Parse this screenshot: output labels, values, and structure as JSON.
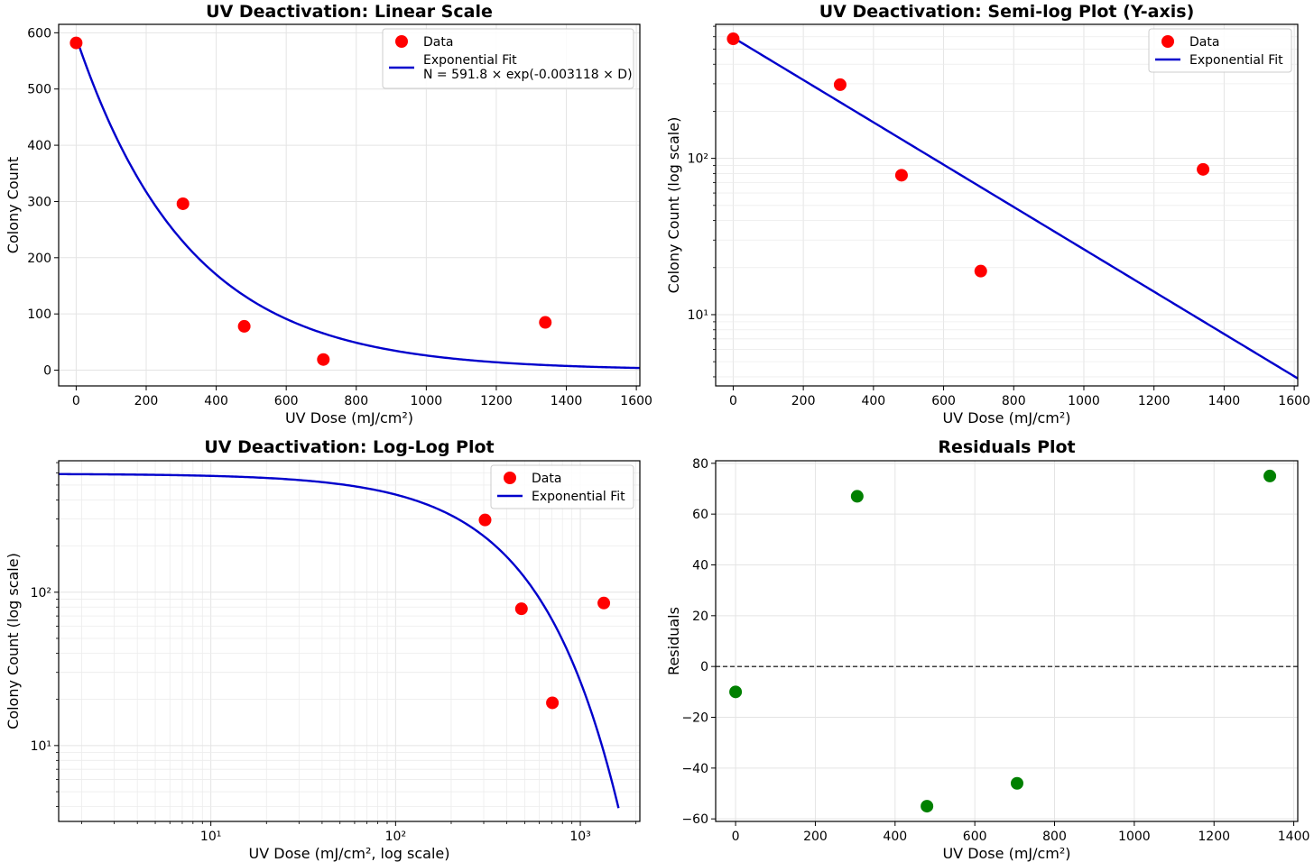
{
  "chart_data": [
    {
      "type": "scatter",
      "title": "UV Deactivation: Linear Scale",
      "xlabel": "UV Dose (mJ/cm²)",
      "ylabel": "Colony Count",
      "xscale": "linear",
      "yscale": "linear",
      "xlim": [
        -50,
        1610
      ],
      "ylim": [
        -28,
        615
      ],
      "xticks": [
        0,
        200,
        400,
        600,
        800,
        1000,
        1200,
        1400,
        1600
      ],
      "xtick_labels": [
        "0",
        "200",
        "400",
        "600",
        "800",
        "1000",
        "1200",
        "1400",
        "1600"
      ],
      "yticks": [
        0,
        100,
        200,
        300,
        400,
        500,
        600
      ],
      "ytick_labels": [
        "0",
        "100",
        "200",
        "300",
        "400",
        "500",
        "600"
      ],
      "grid": true,
      "legend_position": "top-right",
      "legend": [
        {
          "label": "Data",
          "kind": "marker",
          "color": "#ff0000"
        },
        {
          "label": "Exponential Fit",
          "label2": "N = 591.8 × exp(-0.003118 × D)",
          "kind": "line",
          "color": "#0000cc"
        }
      ],
      "series": [
        {
          "name": "Data",
          "kind": "scatter",
          "color": "#ff0000",
          "x": [
            0,
            305,
            480,
            706,
            1340
          ],
          "y": [
            582,
            296,
            78,
            19,
            85
          ]
        },
        {
          "name": "Exponential Fit",
          "kind": "curve",
          "color": "#0000cc",
          "a": 591.8,
          "k": 0.003118,
          "x_range": [
            0,
            1610
          ]
        }
      ]
    },
    {
      "type": "scatter",
      "title": "UV Deactivation: Semi-log Plot (Y-axis)",
      "xlabel": "UV Dose (mJ/cm²)",
      "ylabel": "Colony Count (log scale)",
      "xscale": "linear",
      "yscale": "log",
      "xlim": [
        -50,
        1610
      ],
      "ylim": [
        3.5,
        720
      ],
      "xticks": [
        0,
        200,
        400,
        600,
        800,
        1000,
        1200,
        1400,
        1600
      ],
      "xtick_labels": [
        "0",
        "200",
        "400",
        "600",
        "800",
        "1000",
        "1200",
        "1400",
        "1600"
      ],
      "yticks": [
        10,
        100
      ],
      "ytick_labels": [
        "10¹",
        "10²"
      ],
      "grid": true,
      "legend_position": "top-right",
      "legend": [
        {
          "label": "Data",
          "kind": "marker",
          "color": "#ff0000"
        },
        {
          "label": "Exponential Fit",
          "kind": "line",
          "color": "#0000cc"
        }
      ],
      "series": [
        {
          "name": "Data",
          "kind": "scatter",
          "color": "#ff0000",
          "x": [
            0,
            305,
            480,
            706,
            1340
          ],
          "y": [
            582,
            296,
            78,
            19,
            85
          ]
        },
        {
          "name": "Exponential Fit",
          "kind": "curve",
          "color": "#0000cc",
          "a": 591.8,
          "k": 0.003118,
          "x_range": [
            0,
            1610
          ]
        }
      ]
    },
    {
      "type": "scatter",
      "title": "UV Deactivation: Log-Log Plot",
      "xlabel": "UV Dose (mJ/cm², log scale)",
      "ylabel": "Colony Count (log scale)",
      "xscale": "log",
      "yscale": "log",
      "xlim": [
        1.5,
        2100
      ],
      "ylim": [
        3.2,
        720
      ],
      "xticks": [
        10,
        100,
        1000
      ],
      "xtick_labels": [
        "10¹",
        "10²",
        "10³"
      ],
      "yticks": [
        10,
        100
      ],
      "ytick_labels": [
        "10¹",
        "10²"
      ],
      "grid": true,
      "legend_position": "top-right",
      "legend": [
        {
          "label": "Data",
          "kind": "marker",
          "color": "#ff0000"
        },
        {
          "label": "Exponential Fit",
          "kind": "line",
          "color": "#0000cc"
        }
      ],
      "series": [
        {
          "name": "Data",
          "kind": "scatter",
          "color": "#ff0000",
          "x": [
            305,
            480,
            706,
            1340
          ],
          "y": [
            296,
            78,
            19,
            85
          ]
        },
        {
          "name": "Exponential Fit",
          "kind": "curve",
          "color": "#0000cc",
          "a": 591.8,
          "k": 0.003118,
          "x_range": [
            1.5,
            1610
          ]
        }
      ]
    },
    {
      "type": "scatter",
      "title": "Residuals Plot",
      "xlabel": "UV Dose (mJ/cm²)",
      "ylabel": "Residuals",
      "xscale": "linear",
      "yscale": "linear",
      "xlim": [
        -50,
        1410
      ],
      "ylim": [
        -61,
        81
      ],
      "xticks": [
        0,
        200,
        400,
        600,
        800,
        1000,
        1200,
        1400
      ],
      "xtick_labels": [
        "0",
        "200",
        "400",
        "600",
        "800",
        "1000",
        "1200",
        "1400"
      ],
      "yticks": [
        -60,
        -40,
        -20,
        0,
        20,
        40,
        60,
        80
      ],
      "ytick_labels": [
        "−60",
        "−40",
        "−20",
        "0",
        "20",
        "40",
        "60",
        "80"
      ],
      "grid": true,
      "zero_line": {
        "y": 0,
        "color": "#000000",
        "style": "dashed"
      },
      "series": [
        {
          "name": "Residuals",
          "kind": "scatter",
          "color": "#008000",
          "x": [
            0,
            305,
            480,
            706,
            1340
          ],
          "y": [
            -10,
            67,
            -55,
            -46,
            75
          ]
        }
      ]
    }
  ]
}
